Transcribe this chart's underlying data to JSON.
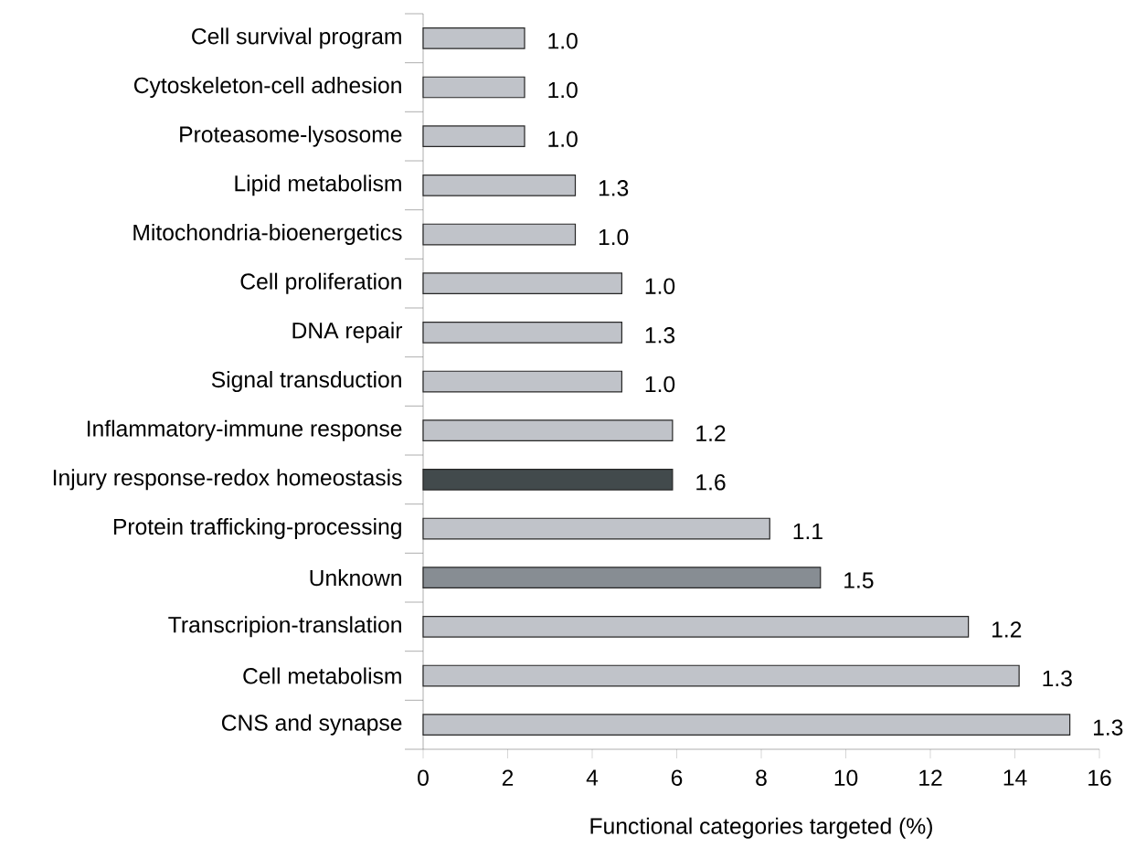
{
  "chart_data": {
    "type": "bar",
    "orientation": "horizontal",
    "xlabel": "Functional categories targeted (%)",
    "categories": [
      "Cell survival program",
      "Cytoskeleton-cell adhesion",
      "Proteasome-lysosome",
      "Lipid metabolism",
      "Mitochondria-bioenergetics",
      "Cell proliferation",
      "DNA repair",
      "Signal transduction",
      "Inflammatory-immune response",
      "Injury response-redox homeostasis",
      "Protein trafficking-processing",
      "Unknown",
      "Transcripion-translation",
      "Cell metabolism",
      "CNS and synapse"
    ],
    "values": [
      2.4,
      2.4,
      2.4,
      3.6,
      3.6,
      4.7,
      4.7,
      4.7,
      5.9,
      5.9,
      8.2,
      9.4,
      12.9,
      14.1,
      15.3
    ],
    "colors": [
      "#c0c3c9",
      "#c0c3c9",
      "#c0c3c9",
      "#c0c3c9",
      "#c0c3c9",
      "#c0c3c9",
      "#c0c3c9",
      "#c0c3c9",
      "#c0c3c9",
      "#424a4c",
      "#c0c3c9",
      "#878d93",
      "#c0c3c9",
      "#c0c3c9",
      "#c0c3c9"
    ],
    "annotations": [
      {
        "text": "1.0",
        "x": 2.4,
        "y": "Cell survival program"
      },
      {
        "text": "1.0",
        "x": 2.4,
        "y": "Cytoskeleton-cell adhesion"
      },
      {
        "text": "1.0",
        "x": 2.4,
        "y": "Proteasome-lysosome"
      },
      {
        "text": "1.3",
        "x": 3.6,
        "y": "Lipid metabolism"
      },
      {
        "text": "1.0",
        "x": 3.6,
        "y": "Mitochondria-bioenergetics"
      },
      {
        "text": "1.0",
        "x": 4.7,
        "y": "Cell proliferation"
      },
      {
        "text": "1.3",
        "x": 4.7,
        "y": "DNA repair"
      },
      {
        "text": "1.0",
        "x": 4.7,
        "y": "Signal transduction"
      },
      {
        "text": "1.2",
        "x": 5.9,
        "y": "Inflammatory-immune response"
      },
      {
        "text": "1.6",
        "x": 5.9,
        "y": "Injury response-redox homeostasis"
      },
      {
        "text": "1.1",
        "x": 8.2,
        "y": "Protein trafficking-processing"
      },
      {
        "text": "1.5",
        "x": 9.4,
        "y": "Unknown"
      },
      {
        "text": "1.2",
        "x": 12.9,
        "y": "Transcripion-translation"
      },
      {
        "text": "1.3",
        "x": 14.1,
        "y": "Cell metabolism"
      },
      {
        "text": "1.3",
        "x": 15.3,
        "y": "CNS and synapse"
      }
    ],
    "xlim": [
      0,
      16
    ],
    "xticks": [
      0,
      2,
      4,
      6,
      8,
      10,
      12,
      14,
      16
    ]
  }
}
